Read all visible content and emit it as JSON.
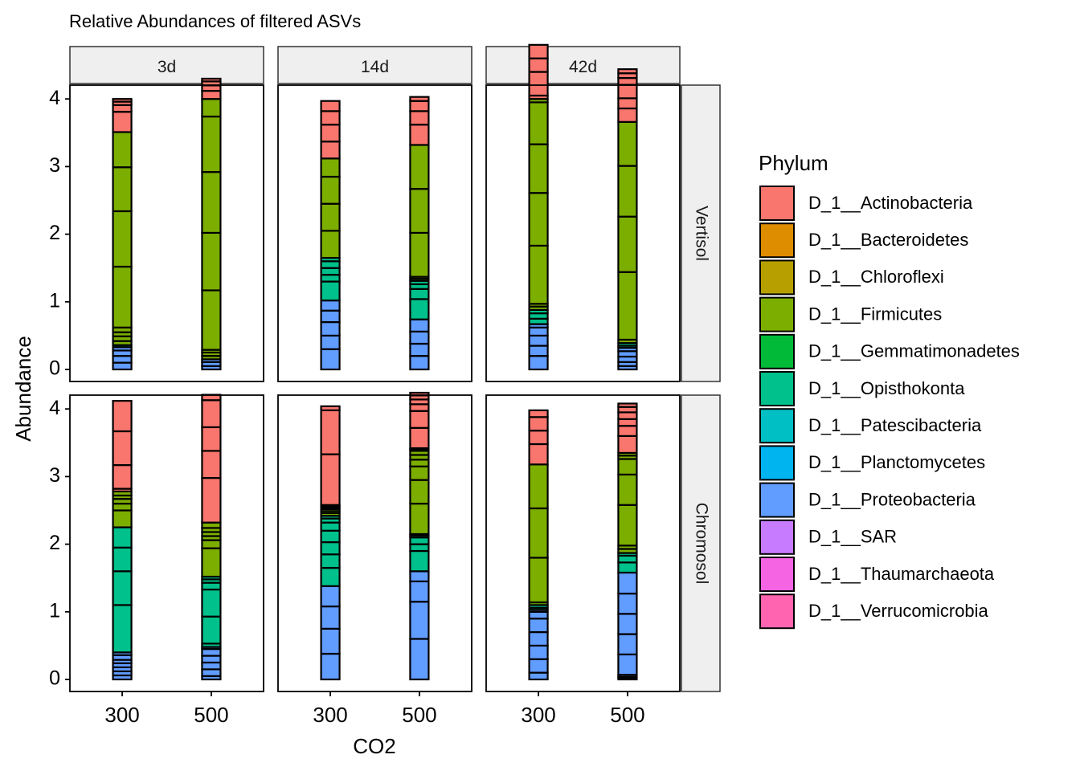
{
  "chart_data": {
    "type": "bar",
    "title": "Relative Abundances of filtered ASVs",
    "xlabel": "CO2",
    "ylabel": "Abundance",
    "ylim": [
      0,
      4
    ],
    "y_ticks": [
      "0",
      "1",
      "2",
      "3",
      "4"
    ],
    "categories": [
      "300",
      "500"
    ],
    "column_facets": [
      "3d",
      "14d",
      "42d"
    ],
    "row_facets": [
      "Vertisol",
      "Chromosol"
    ],
    "legend": {
      "title": "Phylum",
      "position": "right",
      "entries": [
        {
          "name": "D_1__Actinobacteria",
          "color": "#F8766D"
        },
        {
          "name": "D_1__Bacteroidetes",
          "color": "#DE8C00"
        },
        {
          "name": "D_1__Chloroflexi",
          "color": "#B79F00"
        },
        {
          "name": "D_1__Firmicutes",
          "color": "#7CAE00"
        },
        {
          "name": "D_1__Gemmatimonadetes",
          "color": "#00BA38"
        },
        {
          "name": "D_1__Opisthokonta",
          "color": "#00C08B"
        },
        {
          "name": "D_1__Patescibacteria",
          "color": "#00BFC4"
        },
        {
          "name": "D_1__Planctomycetes",
          "color": "#00B4F0"
        },
        {
          "name": "D_1__Proteobacteria",
          "color": "#619CFF"
        },
        {
          "name": "D_1__SAR",
          "color": "#C77CFF"
        },
        {
          "name": "D_1__Thaumarchaeota",
          "color": "#F564E3"
        },
        {
          "name": "D_1__Verrucomicrobia",
          "color": "#FF64B0"
        }
      ]
    },
    "grid": false,
    "panels": [
      {
        "row": "Vertisol",
        "col": "3d",
        "bars": [
          {
            "x": "300",
            "segments": [
              {
                "phylum": "D_1__Proteobacteria",
                "values": [
                  0.1,
                  0.1,
                  0.08,
                  0.05
                ]
              },
              {
                "phylum": "D_1__Opisthokonta",
                "values": [
                  0.03
                ]
              },
              {
                "phylum": "D_1__Firmicutes",
                "values": [
                  0.06,
                  0.07,
                  0.06,
                  0.07,
                  0.9,
                  0.82,
                  0.65,
                  0.52
                ]
              },
              {
                "phylum": "D_1__Actinobacteria",
                "values": [
                  0.3,
                  0.1,
                  0.05,
                  0.04
                ]
              }
            ]
          },
          {
            "x": "500",
            "segments": [
              {
                "phylum": "D_1__Proteobacteria",
                "values": [
                  0.05,
                  0.06,
                  0.04
                ]
              },
              {
                "phylum": "D_1__Firmicutes",
                "values": [
                  0.05,
                  0.05,
                  0.04,
                  0.88,
                  0.85,
                  0.9,
                  0.82,
                  0.26
                ]
              },
              {
                "phylum": "D_1__Actinobacteria",
                "values": [
                  0.12,
                  0.08,
                  0.06,
                  0.04
                ]
              }
            ]
          }
        ]
      },
      {
        "row": "Vertisol",
        "col": "14d",
        "bars": [
          {
            "x": "300",
            "segments": [
              {
                "phylum": "D_1__Proteobacteria",
                "values": [
                  0.3,
                  0.2,
                  0.2,
                  0.17,
                  0.15
                ]
              },
              {
                "phylum": "D_1__Opisthokonta",
                "values": [
                  0.28,
                  0.1,
                  0.1,
                  0.1,
                  0.05
                ]
              },
              {
                "phylum": "D_1__Firmicutes",
                "values": [
                  0.4,
                  0.4,
                  0.4,
                  0.27
                ]
              },
              {
                "phylum": "D_1__Actinobacteria",
                "values": [
                  0.25,
                  0.25,
                  0.2,
                  0.15
                ]
              }
            ]
          },
          {
            "x": "500",
            "segments": [
              {
                "phylum": "D_1__Proteobacteria",
                "values": [
                  0.2,
                  0.18,
                  0.18,
                  0.18
                ]
              },
              {
                "phylum": "D_1__Opisthokonta",
                "values": [
                  0.3,
                  0.15,
                  0.07,
                  0.05
                ]
              },
              {
                "phylum": "D_1__Firmicutes",
                "values": [
                  0.03,
                  0.03,
                  0.65,
                  0.65,
                  0.65
                ]
              },
              {
                "phylum": "D_1__Actinobacteria",
                "values": [
                  0.3,
                  0.2,
                  0.15,
                  0.06
                ]
              }
            ]
          }
        ]
      },
      {
        "row": "Vertisol",
        "col": "42d",
        "bars": [
          {
            "x": "300",
            "segments": [
              {
                "phylum": "D_1__Proteobacteria",
                "values": [
                  0.2,
                  0.15,
                  0.15,
                  0.12,
                  0.05
                ]
              },
              {
                "phylum": "D_1__Opisthokonta",
                "values": [
                  0.08,
                  0.08,
                  0.05
                ]
              },
              {
                "phylum": "D_1__Firmicutes",
                "values": [
                  0.05,
                  0.04,
                  0.86,
                  0.78,
                  0.72,
                  0.62,
                  0.05
                ]
              },
              {
                "phylum": "D_1__Actinobacteria",
                "values": [
                  0.05,
                  0.35,
                  0.2,
                  0.2
                ]
              }
            ]
          },
          {
            "x": "500",
            "segments": [
              {
                "phylum": "D_1__Proteobacteria",
                "values": [
                  0.05,
                  0.06,
                  0.08,
                  0.08,
                  0.05
                ]
              },
              {
                "phylum": "D_1__Opisthokonta",
                "values": [
                  0.03,
                  0.04
                ]
              },
              {
                "phylum": "D_1__Firmicutes",
                "values": [
                  0.05,
                  1.0,
                  0.82,
                  0.75,
                  0.65
                ]
              },
              {
                "phylum": "D_1__Actinobacteria",
                "values": [
                  0.2,
                  0.15,
                  0.2,
                  0.1,
                  0.07,
                  0.06
                ]
              }
            ]
          }
        ]
      },
      {
        "row": "Chromosol",
        "col": "3d",
        "bars": [
          {
            "x": "300",
            "segments": [
              {
                "phylum": "D_1__Proteobacteria",
                "values": [
                  0.06,
                  0.06,
                  0.06,
                  0.06,
                  0.05,
                  0.07,
                  0.04
                ]
              },
              {
                "phylum": "D_1__Opisthokonta",
                "values": [
                  0.7,
                  0.5,
                  0.35,
                  0.3
                ]
              },
              {
                "phylum": "D_1__Firmicutes",
                "values": [
                  0.25,
                  0.1,
                  0.07,
                  0.05,
                  0.06
                ]
              },
              {
                "phylum": "D_1__Actinobacteria",
                "values": [
                  0.04,
                  0.35,
                  0.5,
                  0.45
                ]
              }
            ]
          },
          {
            "x": "500",
            "segments": [
              {
                "phylum": "D_1__Proteobacteria",
                "values": [
                  0.05,
                  0.1,
                  0.1,
                  0.1,
                  0.1,
                  0.03
                ]
              },
              {
                "phylum": "D_1__Opisthokonta",
                "values": [
                  0.05,
                  0.4,
                  0.4,
                  0.1,
                  0.05,
                  0.04
                ]
              },
              {
                "phylum": "D_1__Firmicutes",
                "values": [
                  0.42,
                  0.12,
                  0.06,
                  0.06,
                  0.06,
                  0.08
                ]
              },
              {
                "phylum": "D_1__Actinobacteria",
                "values": [
                  0.66,
                  0.4,
                  0.35,
                  0.4,
                  0.08
                ]
              }
            ]
          }
        ]
      },
      {
        "row": "Chromosol",
        "col": "14d",
        "bars": [
          {
            "x": "300",
            "segments": [
              {
                "phylum": "D_1__Proteobacteria",
                "values": [
                  0.38,
                  0.37,
                  0.33,
                  0.3
                ]
              },
              {
                "phylum": "D_1__Opisthokonta",
                "values": [
                  0.27,
                  0.2,
                  0.18,
                  0.17,
                  0.12,
                  0.06,
                  0.04
                ]
              },
              {
                "phylum": "D_1__Firmicutes",
                "values": [
                  0.04,
                  0.03,
                  0.03
                ]
              },
              {
                "phylum": "D_1__Actinobacteria",
                "values": [
                  0.02,
                  0.02,
                  0.02,
                  0.75,
                  0.65,
                  0.06
                ]
              }
            ]
          },
          {
            "x": "500",
            "segments": [
              {
                "phylum": "D_1__Proteobacteria",
                "values": [
                  0.6,
                  0.55,
                  0.3,
                  0.15
                ]
              },
              {
                "phylum": "D_1__Opisthokonta",
                "values": [
                  0.3,
                  0.1,
                  0.1,
                  0.03
                ]
              },
              {
                "phylum": "D_1__Firmicutes",
                "values": [
                  0.02,
                  0.45,
                  0.35,
                  0.2,
                  0.1,
                  0.07,
                  0.06,
                  0.02,
                  0.02
                ]
              },
              {
                "phylum": "D_1__Actinobacteria",
                "values": [
                  0.3,
                  0.25,
                  0.1,
                  0.07,
                  0.06,
                  0.04
                ]
              }
            ]
          }
        ]
      },
      {
        "row": "Chromosol",
        "col": "42d",
        "bars": [
          {
            "x": "300",
            "segments": [
              {
                "phylum": "D_1__Proteobacteria",
                "values": [
                  0.1,
                  0.2,
                  0.2,
                  0.2,
                  0.2,
                  0.1,
                  0.03
                ]
              },
              {
                "phylum": "D_1__Opisthokonta",
                "values": [
                  0.03,
                  0.04
                ]
              },
              {
                "phylum": "D_1__Firmicutes",
                "values": [
                  0.04,
                  0.66,
                  0.73,
                  0.65
                ]
              },
              {
                "phylum": "D_1__Actinobacteria",
                "values": [
                  0.3,
                  0.2,
                  0.2,
                  0.1
                ]
              }
            ]
          },
          {
            "x": "500",
            "segments": [
              {
                "phylum": "D_1__Proteobacteria",
                "values": [
                  0.02,
                  0.02,
                  0.03,
                  0.3,
                  0.3,
                  0.3,
                  0.3,
                  0.31
                ]
              },
              {
                "phylum": "D_1__Opisthokonta",
                "values": [
                  0.15,
                  0.1,
                  0.04
                ]
              },
              {
                "phylum": "D_1__Firmicutes",
                "values": [
                  0.06,
                  0.05,
                  0.6,
                  0.45,
                  0.23,
                  0.05,
                  0.04
                ]
              },
              {
                "phylum": "D_1__Actinobacteria",
                "values": [
                  0.25,
                  0.15,
                  0.1,
                  0.1,
                  0.08,
                  0.05
                ]
              }
            ]
          }
        ]
      }
    ]
  }
}
